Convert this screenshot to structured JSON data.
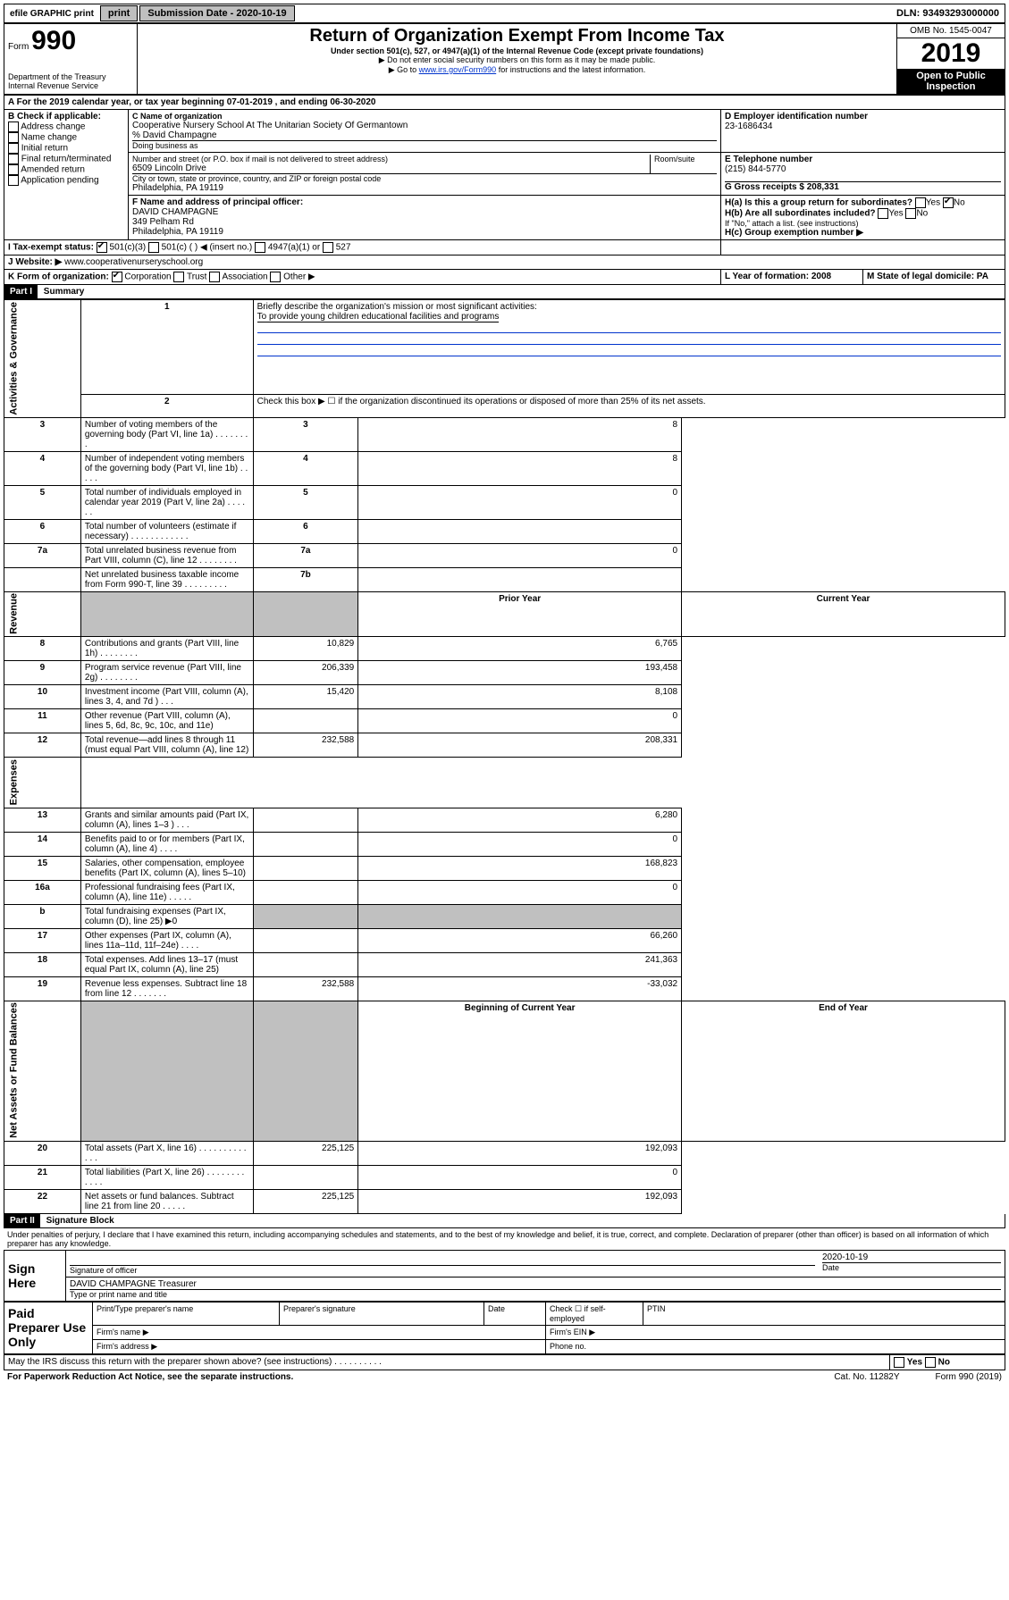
{
  "topbar": {
    "efile": "efile GRAPHIC print",
    "submission_label": "Submission Date - 2020-10-19",
    "dln": "DLN: 93493293000000"
  },
  "header": {
    "form_label": "Form",
    "form_num": "990",
    "dept": "Department of the Treasury\nInternal Revenue Service",
    "title": "Return of Organization Exempt From Income Tax",
    "subtitle": "Under section 501(c), 527, or 4947(a)(1) of the Internal Revenue Code (except private foundations)",
    "note1": "▶ Do not enter social security numbers on this form as it may be made public.",
    "note2_pre": "▶ Go to ",
    "note2_link": "www.irs.gov/Form990",
    "note2_post": " for instructions and the latest information.",
    "omb": "OMB No. 1545-0047",
    "year": "2019",
    "open": "Open to Public Inspection"
  },
  "sectionA": {
    "a_line": "For the 2019 calendar year, or tax year beginning 07-01-2019     , and ending 06-30-2020",
    "b_label": "B Check if applicable:",
    "b_opts": [
      "Address change",
      "Name change",
      "Initial return",
      "Final return/terminated",
      "Amended return",
      "Application pending"
    ],
    "c_label": "C Name of organization",
    "c_name": "Cooperative Nursery School At The Unitarian Society Of Germantown",
    "c_care": "% David Champagne",
    "c_dba_label": "Doing business as",
    "c_addr_label": "Number and street (or P.O. box if mail is not delivered to street address)",
    "c_addr": "6509 Lincoln Drive",
    "c_room": "Room/suite",
    "c_city_label": "City or town, state or province, country, and ZIP or foreign postal code",
    "c_city": "Philadelphia, PA  19119",
    "d_label": "D Employer identification number",
    "d_val": "23-1686434",
    "e_label": "E Telephone number",
    "e_val": "(215) 844-5770",
    "g_label": "G Gross receipts $ 208,331",
    "f_label": "F  Name and address of principal officer:",
    "f_name": "DAVID CHAMPAGNE",
    "f_addr1": "349 Pelham Rd",
    "f_addr2": "Philadelphia, PA  19119",
    "ha_label": "H(a)  Is this a group return for subordinates?",
    "hb_label": "H(b)  Are all subordinates included?",
    "hb_note": "If \"No,\" attach a list. (see instructions)",
    "hc_label": "H(c)  Group exemption number ▶",
    "yes": "Yes",
    "no": "No",
    "i_label": "I  Tax-exempt status:",
    "i_501c3": "501(c)(3)",
    "i_501c": "501(c) (  ) ◀ (insert no.)",
    "i_4947": "4947(a)(1) or",
    "i_527": "527",
    "j_label": "J  Website: ▶",
    "j_val": "www.cooperativenurseryschool.org",
    "k_label": "K Form of organization:",
    "k_corp": "Corporation",
    "k_trust": "Trust",
    "k_assoc": "Association",
    "k_other": "Other ▶",
    "l_label": "L Year of formation: 2008",
    "m_label": "M State of legal domicile: PA"
  },
  "part1": {
    "header": "Part I",
    "title": "Summary",
    "side_gov": "Activities & Governance",
    "side_rev": "Revenue",
    "side_exp": "Expenses",
    "side_net": "Net Assets or Fund Balances",
    "q1": "Briefly describe the organization's mission or most significant activities:",
    "q1_ans": "To provide young children educational facilities and programs",
    "q2": "Check this box ▶ ☐  if the organization discontinued its operations or disposed of more than 25% of its net assets.",
    "rows_gov": [
      {
        "n": "3",
        "t": "Number of voting members of the governing body (Part VI, line 1a)  .  .  .  .  .  .  .  .",
        "box": "3",
        "v": "8"
      },
      {
        "n": "4",
        "t": "Number of independent voting members of the governing body (Part VI, line 1b)  .  .  .  .  .",
        "box": "4",
        "v": "8"
      },
      {
        "n": "5",
        "t": "Total number of individuals employed in calendar year 2019 (Part V, line 2a)  .  .  .  .  .  .",
        "box": "5",
        "v": "0"
      },
      {
        "n": "6",
        "t": "Total number of volunteers (estimate if necessary)  .  .  .  .  .  .  .  .  .  .  .  .",
        "box": "6",
        "v": ""
      },
      {
        "n": "7a",
        "t": "Total unrelated business revenue from Part VIII, column (C), line 12  .  .  .  .  .  .  .  .",
        "box": "7a",
        "v": "0"
      },
      {
        "n": "",
        "t": "Net unrelated business taxable income from Form 990-T, line 39  .  .  .  .  .  .  .  .  .",
        "box": "7b",
        "v": ""
      }
    ],
    "col_prior": "Prior Year",
    "col_current": "Current Year",
    "rows_rev": [
      {
        "n": "8",
        "t": "Contributions and grants (Part VIII, line 1h)  .  .  .  .  .  .  .  .",
        "p": "10,829",
        "c": "6,765"
      },
      {
        "n": "9",
        "t": "Program service revenue (Part VIII, line 2g)  .  .  .  .  .  .  .  .",
        "p": "206,339",
        "c": "193,458"
      },
      {
        "n": "10",
        "t": "Investment income (Part VIII, column (A), lines 3, 4, and 7d )  .  .  .",
        "p": "15,420",
        "c": "8,108"
      },
      {
        "n": "11",
        "t": "Other revenue (Part VIII, column (A), lines 5, 6d, 8c, 9c, 10c, and 11e)",
        "p": "",
        "c": "0"
      },
      {
        "n": "12",
        "t": "Total revenue—add lines 8 through 11 (must equal Part VIII, column (A), line 12)",
        "p": "232,588",
        "c": "208,331"
      }
    ],
    "rows_exp": [
      {
        "n": "13",
        "t": "Grants and similar amounts paid (Part IX, column (A), lines 1–3 )  .  .  .",
        "p": "",
        "c": "6,280"
      },
      {
        "n": "14",
        "t": "Benefits paid to or for members (Part IX, column (A), line 4)  .  .  .  .",
        "p": "",
        "c": "0"
      },
      {
        "n": "15",
        "t": "Salaries, other compensation, employee benefits (Part IX, column (A), lines 5–10)",
        "p": "",
        "c": "168,823"
      },
      {
        "n": "16a",
        "t": "Professional fundraising fees (Part IX, column (A), line 11e)  .  .  .  .  .",
        "p": "",
        "c": "0"
      },
      {
        "n": "b",
        "t": "Total fundraising expenses (Part IX, column (D), line 25) ▶0",
        "p": "SHADE",
        "c": "SHADE"
      },
      {
        "n": "17",
        "t": "Other expenses (Part IX, column (A), lines 11a–11d, 11f–24e)  .  .  .  .",
        "p": "",
        "c": "66,260"
      },
      {
        "n": "18",
        "t": "Total expenses. Add lines 13–17 (must equal Part IX, column (A), line 25)",
        "p": "",
        "c": "241,363"
      },
      {
        "n": "19",
        "t": "Revenue less expenses. Subtract line 18 from line 12  .  .  .  .  .  .  .",
        "p": "232,588",
        "c": "-33,032"
      }
    ],
    "col_begin": "Beginning of Current Year",
    "col_end": "End of Year",
    "rows_net": [
      {
        "n": "20",
        "t": "Total assets (Part X, line 16)  .  .  .  .  .  .  .  .  .  .  .  .  .",
        "p": "225,125",
        "c": "192,093"
      },
      {
        "n": "21",
        "t": "Total liabilities (Part X, line 26)  .  .  .  .  .  .  .  .  .  .  .  .",
        "p": "",
        "c": "0"
      },
      {
        "n": "22",
        "t": "Net assets or fund balances. Subtract line 21 from line 20  .  .  .  .  .",
        "p": "225,125",
        "c": "192,093"
      }
    ]
  },
  "part2": {
    "header": "Part II",
    "title": "Signature Block",
    "decl": "Under penalties of perjury, I declare that I have examined this return, including accompanying schedules and statements, and to the best of my knowledge and belief, it is true, correct, and complete. Declaration of preparer (other than officer) is based on all information of which preparer has any knowledge.",
    "sign_here": "Sign Here",
    "sig_officer": "Signature of officer",
    "sig_date": "2020-10-19",
    "date_label": "Date",
    "sig_name": "DAVID CHAMPAGNE Treasurer",
    "sig_name_label": "Type or print name and title",
    "paid": "Paid Preparer Use Only",
    "prep_name": "Print/Type preparer's name",
    "prep_sig": "Preparer's signature",
    "prep_date": "Date",
    "prep_check": "Check ☐ if self-employed",
    "ptin": "PTIN",
    "firm_name": "Firm's name  ▶",
    "firm_ein": "Firm's EIN ▶",
    "firm_addr": "Firm's address ▶",
    "phone": "Phone no.",
    "discuss": "May the IRS discuss this return with the preparer shown above? (see instructions)  .  .  .  .  .  .  .  .  .  .",
    "footer1": "For Paperwork Reduction Act Notice, see the separate instructions.",
    "footer2": "Cat. No. 11282Y",
    "footer3": "Form 990 (2019)"
  }
}
